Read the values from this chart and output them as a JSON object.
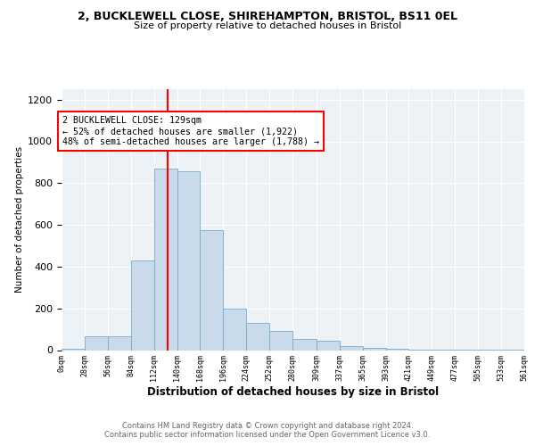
{
  "title_line1": "2, BUCKLEWELL CLOSE, SHIREHAMPTON, BRISTOL, BS11 0EL",
  "title_line2": "Size of property relative to detached houses in Bristol",
  "xlabel": "Distribution of detached houses by size in Bristol",
  "ylabel": "Number of detached properties",
  "bar_color": "#c9daea",
  "bar_edge_color": "#7aaac8",
  "marker_value": 129,
  "marker_color": "red",
  "annotation_title": "2 BUCKLEWELL CLOSE: 129sqm",
  "annotation_line2": "← 52% of detached houses are smaller (1,922)",
  "annotation_line3": "48% of semi-detached houses are larger (1,788) →",
  "footer_line1": "Contains HM Land Registry data © Crown copyright and database right 2024.",
  "footer_line2": "Contains public sector information licensed under the Open Government Licence v3.0.",
  "bin_edges": [
    0,
    28,
    56,
    84,
    112,
    140,
    168,
    196,
    224,
    252,
    280,
    309,
    337,
    365,
    393,
    421,
    449,
    477,
    505,
    533,
    561
  ],
  "bin_labels": [
    "0sqm",
    "28sqm",
    "56sqm",
    "84sqm",
    "112sqm",
    "140sqm",
    "168sqm",
    "196sqm",
    "224sqm",
    "252sqm",
    "280sqm",
    "309sqm",
    "337sqm",
    "365sqm",
    "393sqm",
    "421sqm",
    "449sqm",
    "477sqm",
    "505sqm",
    "533sqm",
    "561sqm"
  ],
  "counts": [
    5,
    65,
    65,
    430,
    870,
    855,
    575,
    200,
    130,
    90,
    55,
    45,
    20,
    10,
    8,
    3,
    2,
    2,
    1,
    1
  ],
  "ylim": [
    0,
    1250
  ],
  "yticks": [
    0,
    200,
    400,
    600,
    800,
    1000,
    1200
  ],
  "background_color": "#edf2f7"
}
